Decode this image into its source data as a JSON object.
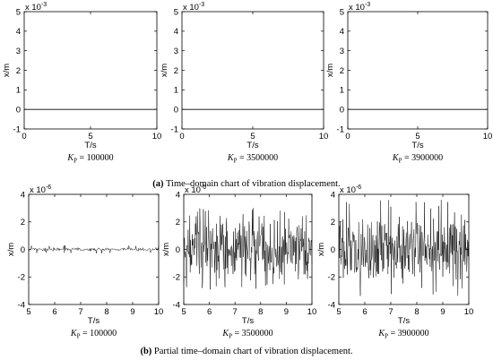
{
  "chart_data": [
    {
      "type": "line",
      "panel": "a",
      "title": "",
      "xlabel": "T/s",
      "ylabel": "x/m",
      "y_exponent_label": "x 10",
      "y_exponent": "-3",
      "xlim": [
        0,
        10
      ],
      "ylim": [
        -1,
        5
      ],
      "x_ticks": [
        "0",
        "5",
        "10"
      ],
      "y_ticks": [
        "-1",
        "0",
        "1",
        "2",
        "3",
        "4",
        "5"
      ],
      "kp_symbol": "K",
      "kp_sub": "P",
      "kp_eq": " = 100000",
      "series": [
        {
          "x": [
            0,
            10
          ],
          "y": [
            0,
            0
          ]
        }
      ]
    },
    {
      "type": "line",
      "panel": "a",
      "title": "",
      "xlabel": "T/s",
      "ylabel": "x/m",
      "y_exponent_label": "x 10",
      "y_exponent": "-3",
      "xlim": [
        0,
        10
      ],
      "ylim": [
        -1,
        5
      ],
      "x_ticks": [
        "0",
        "5",
        "10"
      ],
      "y_ticks": [
        "-1",
        "0",
        "1",
        "2",
        "3",
        "4",
        "5"
      ],
      "kp_symbol": "K",
      "kp_sub": "P",
      "kp_eq": " = 3500000",
      "series": [
        {
          "x": [
            0,
            10
          ],
          "y": [
            0,
            0
          ]
        }
      ]
    },
    {
      "type": "line",
      "panel": "a",
      "title": "",
      "xlabel": "T/s",
      "ylabel": "x/m",
      "y_exponent_label": "x 10",
      "y_exponent": "-3",
      "xlim": [
        0,
        10
      ],
      "ylim": [
        -1,
        5
      ],
      "x_ticks": [
        "0",
        "5",
        "10"
      ],
      "y_ticks": [
        "-1",
        "0",
        "1",
        "2",
        "3",
        "4",
        "5"
      ],
      "kp_symbol": "K",
      "kp_sub": "P",
      "kp_eq": " = 3900000",
      "series": [
        {
          "x": [
            0,
            10
          ],
          "y": [
            0,
            0
          ]
        }
      ]
    },
    {
      "type": "line",
      "panel": "b",
      "title": "",
      "xlabel": "T/s",
      "ylabel": "x/m",
      "y_exponent_label": "x 10",
      "y_exponent": "-6",
      "xlim": [
        5,
        10
      ],
      "ylim": [
        -4,
        4
      ],
      "x_ticks": [
        "5",
        "6",
        "7",
        "8",
        "9",
        "10"
      ],
      "y_ticks": [
        "-4",
        "-2",
        "0",
        "2",
        "4"
      ],
      "kp_symbol": "K",
      "kp_sub": "P",
      "kp_eq": " = 100000",
      "series": [
        {
          "kind": "noise",
          "x_range": [
            5,
            10
          ],
          "amplitude": 0.15,
          "peak": 0.3,
          "samples": 240
        }
      ]
    },
    {
      "type": "line",
      "panel": "b",
      "title": "",
      "xlabel": "T/s",
      "ylabel": "x/m",
      "y_exponent_label": "x 10",
      "y_exponent": "-6",
      "xlim": [
        5,
        10
      ],
      "ylim": [
        -4,
        4
      ],
      "x_ticks": [
        "5",
        "6",
        "7",
        "8",
        "9",
        "10"
      ],
      "y_ticks": [
        "-4",
        "-2",
        "0",
        "2",
        "4"
      ],
      "kp_symbol": "K",
      "kp_sub": "P",
      "kp_eq": " = 3500000",
      "series": [
        {
          "kind": "noise",
          "x_range": [
            5,
            10
          ],
          "amplitude": 2.6,
          "peak": 3.0,
          "samples": 320
        }
      ]
    },
    {
      "type": "line",
      "panel": "b",
      "title": "",
      "xlabel": "T/s",
      "ylabel": "x/m",
      "y_exponent_label": "x 10",
      "y_exponent": "-6",
      "xlim": [
        5,
        10
      ],
      "ylim": [
        -4,
        4
      ],
      "x_ticks": [
        "5",
        "6",
        "7",
        "8",
        "9",
        "10"
      ],
      "y_ticks": [
        "-4",
        "-2",
        "0",
        "2",
        "4"
      ],
      "kp_symbol": "K",
      "kp_sub": "P",
      "kp_eq": " = 3900000",
      "series": [
        {
          "kind": "noise",
          "x_range": [
            5,
            10
          ],
          "amplitude": 3.0,
          "peak": 3.6,
          "samples": 320
        }
      ]
    }
  ],
  "captions": {
    "a_label": "(a)",
    "a_text": " Time–domain chart of vibration displacement.",
    "b_label": "(b)",
    "b_text": " Partial time–domain chart of vibration displacement."
  }
}
